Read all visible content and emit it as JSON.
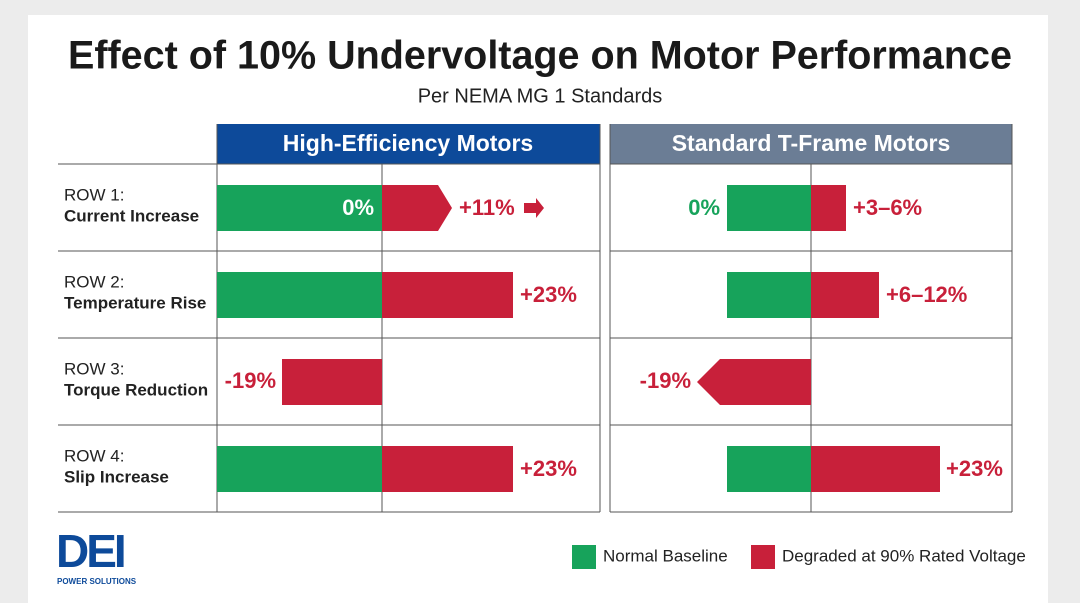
{
  "header": {
    "title": "Effect of 10% Undervoltage on Motor Performance",
    "subtitle": "Per NEMA MG 1 Standards"
  },
  "columns": [
    "High-Efficiency Motors",
    "Standard T-Frame Motors"
  ],
  "rows": [
    {
      "row": "ROW 1:",
      "label": "Current Increase",
      "high": [
        "0%",
        "+11%"
      ],
      "standard": [
        "0%",
        "+3–6%"
      ]
    },
    {
      "row": "ROW 2:",
      "label": "Temperature Rise",
      "high": [
        "+23%"
      ],
      "standard": [
        "+6–12%"
      ]
    },
    {
      "row": "ROW 3:",
      "label": "Torque Reduction",
      "high": [
        "-19%"
      ],
      "standard": [
        "-19%"
      ]
    },
    {
      "row": "ROW 4:",
      "label": "Slip Increase",
      "high": [
        "+23%"
      ],
      "standard": [
        "+23%"
      ]
    }
  ],
  "legend": [
    "Normal Baseline",
    "Degraded at 90% Rated Voltage"
  ],
  "logo": {
    "name": "DEI",
    "tagline": "POWER SOLUTIONS"
  }
}
